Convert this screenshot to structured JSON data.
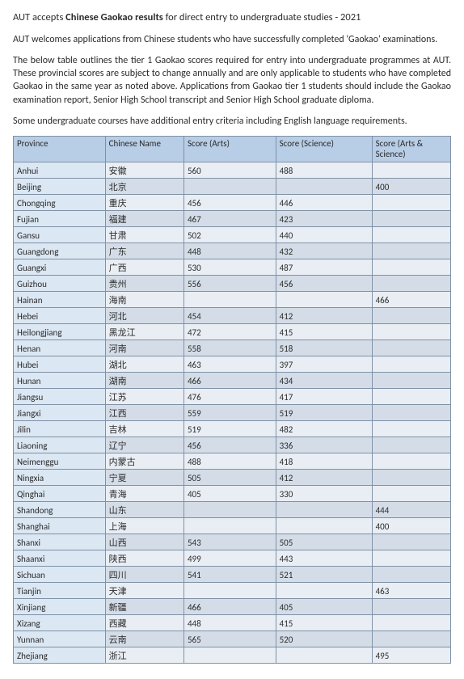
{
  "title": {
    "pre": "AUT accepts ",
    "bold": "Chinese Gaokao results",
    "post": " for direct entry to undergraduate studies - 2021"
  },
  "paragraphs": [
    "AUT welcomes applications from Chinese students who have successfully completed 'Gaokao' examinations.",
    "The below table outlines the tier 1 Gaokao scores required for entry into undergraduate programmes at AUT. These provincial scores are subject to change annually and are only applicable to students who have completed Gaokao in the same year as noted above. Applications from Gaokao tier 1 students should include the Gaokao examination report, Senior High School transcript and Senior High School graduate diploma.",
    "Some undergraduate courses have additional entry criteria including English language requirements."
  ],
  "table": {
    "columns": [
      "Province",
      "Chinese Name",
      "Score (Arts)",
      "Score (Science)",
      "Score (Arts & Science)"
    ],
    "rows": [
      [
        "Anhui",
        "安徽",
        "560",
        "488",
        ""
      ],
      [
        "Beijing",
        "北京",
        "",
        "",
        "400"
      ],
      [
        "Chongqing",
        "重庆",
        "456",
        "446",
        ""
      ],
      [
        "Fujian",
        "福建",
        "467",
        "423",
        ""
      ],
      [
        "Gansu",
        "甘肃",
        "502",
        "440",
        ""
      ],
      [
        "Guangdong",
        "广东",
        "448",
        "432",
        ""
      ],
      [
        "Guangxi",
        "广西",
        "530",
        "487",
        ""
      ],
      [
        "Guizhou",
        "贵州",
        "556",
        "456",
        ""
      ],
      [
        "Hainan",
        "海南",
        "",
        "",
        "466"
      ],
      [
        "Hebei",
        "河北",
        "454",
        "412",
        ""
      ],
      [
        "Heilongjiang",
        "黑龙江",
        "472",
        "415",
        ""
      ],
      [
        "Henan",
        "河南",
        "558",
        "518",
        ""
      ],
      [
        "Hubei",
        "湖北",
        "463",
        "397",
        ""
      ],
      [
        "Hunan",
        "湖南",
        "466",
        "434",
        ""
      ],
      [
        "Jiangsu",
        "江苏",
        "476",
        "417",
        ""
      ],
      [
        "Jiangxi",
        "江西",
        "559",
        "519",
        ""
      ],
      [
        "Jilin",
        "吉林",
        "519",
        "482",
        ""
      ],
      [
        "Liaoning",
        "辽宁",
        "456",
        "336",
        ""
      ],
      [
        "Neimenggu",
        "内蒙古",
        "488",
        "418",
        ""
      ],
      [
        "Ningxia",
        "宁夏",
        "505",
        "412",
        ""
      ],
      [
        "Qinghai",
        "青海",
        "405",
        "330",
        ""
      ],
      [
        "Shandong",
        "山东",
        "",
        "",
        "444"
      ],
      [
        "Shanghai",
        "上海",
        "",
        "",
        "400"
      ],
      [
        "Shanxi",
        "山西",
        "543",
        "505",
        ""
      ],
      [
        "Shaanxi",
        "陕西",
        "499",
        "443",
        ""
      ],
      [
        "Sichuan",
        "四川",
        "541",
        "521",
        ""
      ],
      [
        "Tianjin",
        "天津",
        "",
        "",
        "463"
      ],
      [
        "Xinjiang",
        "新疆",
        "466",
        "405",
        ""
      ],
      [
        "Xizang",
        "西藏",
        "448",
        "415",
        ""
      ],
      [
        "Yunnan",
        "云南",
        "565",
        "520",
        ""
      ],
      [
        "Zhejiang",
        "浙江",
        "",
        "",
        "495"
      ]
    ],
    "colors": {
      "header_bg": "#b8cde6",
      "province_bg": "#dbe7f3",
      "row_even_bg": "#e9eef4",
      "row_odd_bg": "#d4dde7",
      "border": "#7f91a6",
      "text": "#2b2b2b",
      "page_bg": "#ffffff"
    },
    "font": {
      "family": "Calibri",
      "header_size_pt": 11,
      "cell_size_pt": 11
    }
  }
}
